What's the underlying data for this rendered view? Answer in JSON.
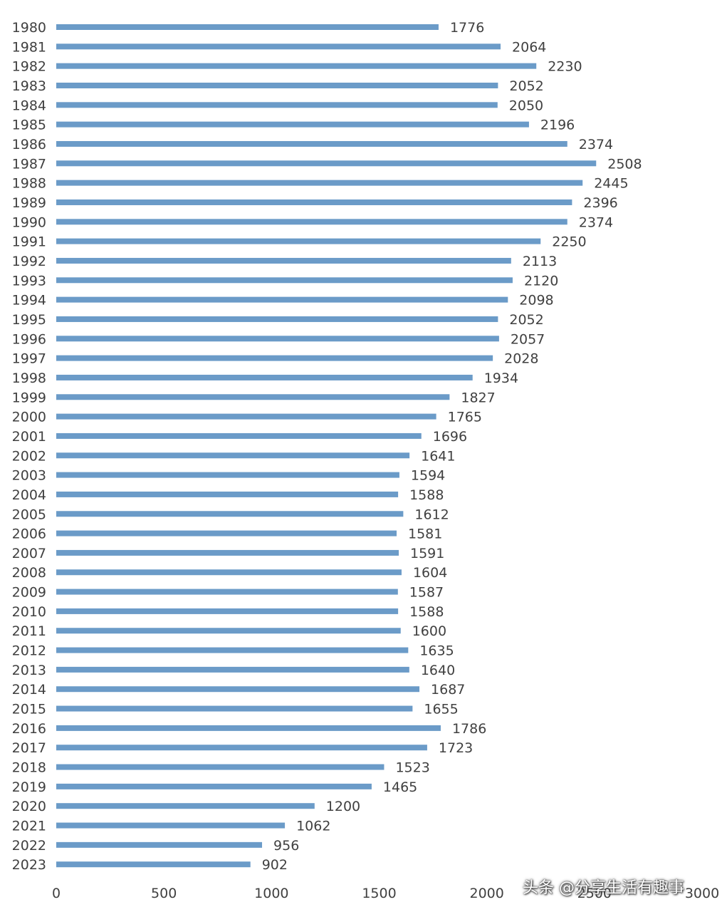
{
  "chart_data": {
    "type": "bar",
    "orientation": "horizontal",
    "categories": [
      "1980",
      "1981",
      "1982",
      "1983",
      "1984",
      "1985",
      "1986",
      "1987",
      "1988",
      "1989",
      "1990",
      "1991",
      "1992",
      "1993",
      "1994",
      "1995",
      "1996",
      "1997",
      "1998",
      "1999",
      "2000",
      "2001",
      "2002",
      "2003",
      "2004",
      "2005",
      "2006",
      "2007",
      "2008",
      "2009",
      "2010",
      "2011",
      "2012",
      "2013",
      "2014",
      "2015",
      "2016",
      "2017",
      "2018",
      "2019",
      "2020",
      "2021",
      "2022",
      "2023"
    ],
    "values": [
      1776,
      2064,
      2230,
      2052,
      2050,
      2196,
      2374,
      2508,
      2445,
      2396,
      2374,
      2250,
      2113,
      2120,
      2098,
      2052,
      2057,
      2028,
      1934,
      1827,
      1765,
      1696,
      1641,
      1594,
      1588,
      1612,
      1581,
      1591,
      1604,
      1587,
      1588,
      1600,
      1635,
      1640,
      1687,
      1655,
      1786,
      1723,
      1523,
      1465,
      1200,
      1062,
      956,
      902
    ],
    "xlim": [
      0,
      3000
    ],
    "xticks": [
      "0",
      "500",
      "1000",
      "1500",
      "2000",
      "2500",
      "3000"
    ],
    "bar_color": "#6b9bc8",
    "grid": false,
    "legend": "none",
    "data_labels": true
  },
  "watermark": "头条 @分享生活有趣事"
}
